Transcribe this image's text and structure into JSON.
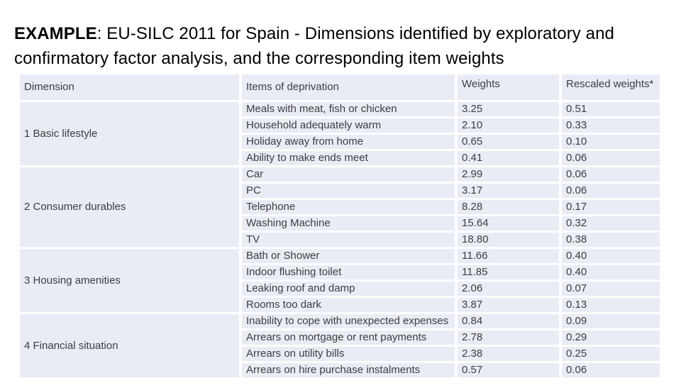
{
  "title": {
    "bold": "EXAMPLE",
    "rest": ": EU-SILC 2011 for Spain - Dimensions identified by exploratory and confirmatory factor analysis, and the corresponding item weights"
  },
  "table": {
    "headers": [
      "Dimension",
      "Items of deprivation",
      "Weights",
      "Rescaled weights*"
    ],
    "sections": [
      {
        "dimension": "1 Basic lifestyle",
        "rows": [
          {
            "item": "Meals with meat, fish or chicken",
            "weight": "3.25",
            "rescaled": "0.51"
          },
          {
            "item": "Household adequately warm",
            "weight": "2.10",
            "rescaled": "0.33"
          },
          {
            "item": "Holiday away from home",
            "weight": "0.65",
            "rescaled": "0.10"
          },
          {
            "item": "Ability to make ends meet",
            "weight": "0.41",
            "rescaled": "0.06"
          }
        ]
      },
      {
        "dimension": "2 Consumer durables",
        "rows": [
          {
            "item": "Car",
            "weight": "2.99",
            "rescaled": "0.06"
          },
          {
            "item": "PC",
            "weight": "3.17",
            "rescaled": "0.06"
          },
          {
            "item": "Telephone",
            "weight": "8.28",
            "rescaled": "0.17"
          },
          {
            "item": "Washing Machine",
            "weight": "15.64",
            "rescaled": "0.32"
          },
          {
            "item": "TV",
            "weight": "18.80",
            "rescaled": "0.38"
          }
        ]
      },
      {
        "dimension": "3 Housing amenities",
        "rows": [
          {
            "item": "Bath or Shower",
            "weight": "11.66",
            "rescaled": "0.40"
          },
          {
            "item": "Indoor flushing toilet",
            "weight": "11.85",
            "rescaled": "0.40"
          },
          {
            "item": "Leaking roof and damp",
            "weight": "2.06",
            "rescaled": "0.07"
          },
          {
            "item": "Rooms too dark",
            "weight": "3.87",
            "rescaled": "0.13"
          }
        ]
      },
      {
        "dimension": "4 Financial situation",
        "rows": [
          {
            "item": "Inability to cope with unexpected expenses",
            "weight": "0.84",
            "rescaled": "0.09"
          },
          {
            "item": "Arrears on mortgage or rent payments",
            "weight": "2.78",
            "rescaled": "0.29"
          },
          {
            "item": "Arrears on utility bills",
            "weight": "2.38",
            "rescaled": "0.25"
          },
          {
            "item": "Arrears on hire purchase instalments",
            "weight": "0.57",
            "rescaled": "0.06"
          }
        ]
      }
    ]
  },
  "colors": {
    "cell_background": "#e9ecf5",
    "table_text": "#3d3d3d",
    "title_text": "#000000",
    "gridline": "#ffffff"
  }
}
